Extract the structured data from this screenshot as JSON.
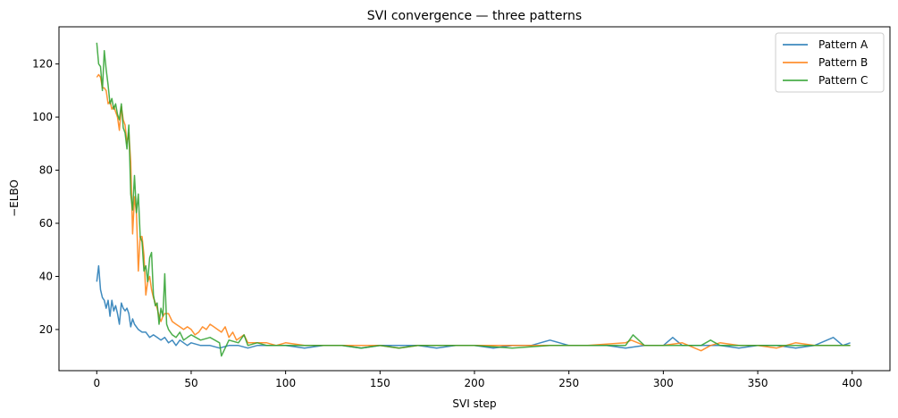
{
  "chart_data": {
    "type": "line",
    "title": "SVI convergence — three patterns",
    "xlabel": "SVI step",
    "ylabel": "−ELBO",
    "xlim": [
      -20,
      420
    ],
    "ylim": [
      4.5,
      134
    ],
    "xticks": [
      0,
      50,
      100,
      150,
      200,
      250,
      300,
      350,
      400
    ],
    "yticks": [
      20,
      40,
      60,
      80,
      100,
      120
    ],
    "grid": false,
    "legend_position": "upper right",
    "series": [
      {
        "name": "Pattern A",
        "color": "#1f77b4",
        "x": [
          0,
          1,
          2,
          3,
          4,
          5,
          6,
          7,
          8,
          9,
          10,
          11,
          12,
          13,
          14,
          15,
          16,
          17,
          18,
          19,
          20,
          22,
          24,
          26,
          28,
          30,
          32,
          34,
          36,
          38,
          40,
          42,
          44,
          46,
          48,
          50,
          55,
          60,
          65,
          70,
          75,
          80,
          85,
          90,
          100,
          110,
          120,
          130,
          140,
          150,
          160,
          170,
          180,
          190,
          200,
          210,
          220,
          230,
          240,
          250,
          260,
          270,
          280,
          290,
          300,
          305,
          310,
          320,
          330,
          340,
          350,
          360,
          370,
          380,
          390,
          395,
          399
        ],
        "values": [
          38,
          44,
          35,
          32,
          31,
          28,
          31,
          25,
          31,
          27,
          29,
          26,
          22,
          30,
          28,
          27,
          28,
          26,
          21,
          24,
          22,
          20,
          19,
          19,
          17,
          18,
          17,
          16,
          17,
          15,
          16,
          14,
          16,
          15,
          14,
          15,
          14,
          14,
          13,
          14,
          14,
          13,
          14,
          14,
          14,
          13,
          14,
          14,
          13,
          14,
          14,
          14,
          13,
          14,
          14,
          13,
          14,
          14,
          16,
          14,
          14,
          14,
          13,
          14,
          14,
          17,
          14,
          14,
          14,
          13,
          14,
          14,
          13,
          14,
          17,
          14,
          15
        ]
      },
      {
        "name": "Pattern B",
        "color": "#ff7f0e",
        "x": [
          0,
          1,
          2,
          3,
          4,
          5,
          6,
          7,
          8,
          9,
          10,
          11,
          12,
          13,
          14,
          15,
          16,
          17,
          18,
          19,
          20,
          21,
          22,
          23,
          24,
          25,
          26,
          27,
          28,
          29,
          30,
          31,
          32,
          33,
          34,
          35,
          36,
          38,
          40,
          42,
          44,
          46,
          48,
          50,
          52,
          54,
          56,
          58,
          60,
          62,
          64,
          66,
          68,
          70,
          72,
          74,
          76,
          78,
          80,
          85,
          90,
          95,
          100,
          110,
          120,
          130,
          140,
          150,
          160,
          170,
          180,
          200,
          220,
          240,
          260,
          280,
          283,
          290,
          300,
          310,
          320,
          325,
          330,
          340,
          350,
          360,
          370,
          380,
          390,
          399
        ],
        "values": [
          115,
          116,
          115,
          111,
          111,
          110,
          105,
          106,
          103,
          104,
          102,
          100,
          95,
          104,
          99,
          97,
          90,
          94,
          83,
          56,
          70,
          64,
          42,
          55,
          55,
          48,
          33,
          38,
          40,
          35,
          32,
          30,
          28,
          25,
          23,
          25,
          26,
          26,
          23,
          22,
          21,
          20,
          21,
          20,
          18,
          19,
          21,
          20,
          22,
          21,
          20,
          19,
          21,
          17,
          19,
          16,
          17,
          18,
          15,
          15,
          15,
          14,
          15,
          14,
          14,
          14,
          14,
          14,
          13,
          14,
          14,
          14,
          14,
          14,
          14,
          15,
          16,
          14,
          14,
          15,
          12,
          14,
          15,
          14,
          14,
          13,
          15,
          14,
          14,
          14
        ]
      },
      {
        "name": "Pattern C",
        "color": "#2ca02c",
        "x": [
          0,
          1,
          2,
          3,
          4,
          5,
          6,
          7,
          8,
          9,
          10,
          11,
          12,
          13,
          14,
          15,
          16,
          17,
          18,
          19,
          20,
          21,
          22,
          23,
          24,
          25,
          26,
          27,
          28,
          29,
          30,
          31,
          32,
          33,
          34,
          35,
          36,
          37,
          38,
          40,
          42,
          44,
          46,
          48,
          50,
          55,
          60,
          65,
          66,
          70,
          75,
          78,
          80,
          85,
          90,
          100,
          110,
          120,
          130,
          140,
          150,
          160,
          170,
          180,
          200,
          220,
          240,
          260,
          280,
          284,
          290,
          300,
          310,
          320,
          325,
          330,
          340,
          350,
          360,
          370,
          380,
          390,
          399
        ],
        "values": [
          128,
          120,
          119,
          110,
          125,
          118,
          112,
          105,
          107,
          103,
          105,
          101,
          99,
          105,
          96,
          94,
          88,
          97,
          71,
          65,
          78,
          64,
          71,
          55,
          53,
          42,
          44,
          38,
          47,
          49,
          33,
          29,
          30,
          22,
          28,
          25,
          41,
          22,
          20,
          18,
          17,
          19,
          16,
          17,
          18,
          16,
          17,
          15,
          10,
          16,
          15,
          18,
          14,
          15,
          14,
          14,
          14,
          14,
          14,
          13,
          14,
          13,
          14,
          14,
          14,
          13,
          14,
          14,
          14,
          18,
          14,
          14,
          14,
          14,
          16,
          14,
          14,
          14,
          14,
          14,
          14,
          14,
          14
        ]
      }
    ]
  }
}
